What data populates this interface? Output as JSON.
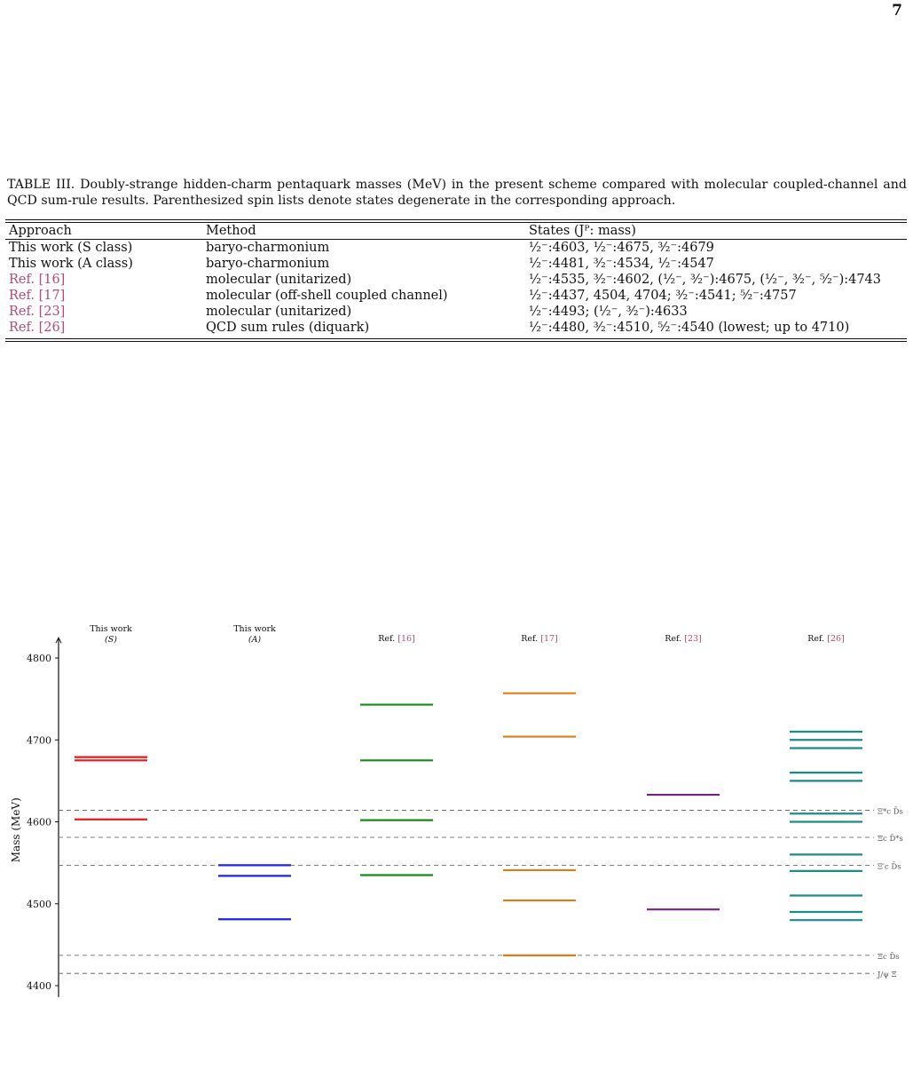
{
  "page_number": "7",
  "caption": "TABLE III. Doubly-strange hidden-charm pentaquark masses (MeV) in the present scheme compared with molecular coupled-channel and QCD sum-rule results. Parenthesized spin lists denote states degenerate in the corresponding approach.",
  "table": {
    "headers": [
      "Approach",
      "Method",
      "States (Jᴾ: mass)"
    ],
    "rows": [
      {
        "approach": "This work (S class)",
        "method": "baryo-charmonium",
        "states": "½⁻:4603, ½⁻:4675, ³⁄₂⁻:4679"
      },
      {
        "approach": "This work (A class)",
        "method": "baryo-charmonium",
        "states": "½⁻:4481, ³⁄₂⁻:4534, ½⁻:4547"
      },
      {
        "approach": "Ref. [16]",
        "method": "molecular (unitarized)",
        "states": "½⁻:4535, ³⁄₂⁻:4602, (½⁻, ³⁄₂⁻):4675, (½⁻, ³⁄₂⁻, ⁵⁄₂⁻):4743"
      },
      {
        "approach": "Ref. [17]",
        "method": "molecular (off-shell coupled channel)",
        "states": "½⁻:4437, 4504, 4704; ³⁄₂⁻:4541; ⁵⁄₂⁻:4757"
      },
      {
        "approach": "Ref. [23]",
        "method": "molecular (unitarized)",
        "states": "½⁻:4493; (½⁻, ³⁄₂⁻):4633"
      },
      {
        "approach": "Ref. [26]",
        "method": "QCD sum rules (diquark)",
        "states": "½⁻:4480, ³⁄₂⁻:4510, ⁵⁄₂⁻:4540 (lowest; up to 4710)"
      }
    ]
  },
  "chart_data": {
    "type": "level-diagram",
    "ylabel": "Mass (MeV)",
    "yticks": [
      4400,
      4500,
      4600,
      4700,
      4800
    ],
    "ylim": [
      4386,
      4815
    ],
    "columns": [
      {
        "label": "This work",
        "sublabel": "(S)",
        "color": "#e41a1c",
        "levels": [
          4603,
          4675,
          4679
        ]
      },
      {
        "label": "This work",
        "sublabel": "(A)",
        "color": "#1f22e8",
        "levels": [
          4481,
          4534,
          4547
        ]
      },
      {
        "label": "Ref. [16]",
        "sublabel": "",
        "color": "#178a17",
        "levels": [
          4535,
          4602,
          4675,
          4743
        ]
      },
      {
        "label": "Ref. [17]",
        "sublabel": "",
        "color": "#e07b1a",
        "levels": [
          4437,
          4504,
          4541,
          4704,
          4757
        ]
      },
      {
        "label": "Ref. [23]",
        "sublabel": "",
        "color": "#7b1f8a",
        "levels": [
          4493,
          4633
        ]
      },
      {
        "label": "Ref. [26]",
        "sublabel": "",
        "color": "#1f8a8a",
        "levels": [
          4480,
          4490,
          4510,
          4540,
          4560,
          4600,
          4610,
          4650,
          4660,
          4690,
          4700,
          4710
        ]
      }
    ],
    "thresholds": [
      {
        "label": "Ξ*c D̄s",
        "mass": 4614
      },
      {
        "label": "Ξc D̄*s",
        "mass": 4581
      },
      {
        "label": "Ξ′c D̄s",
        "mass": 4547
      },
      {
        "label": "Ξc D̄s",
        "mass": 4437
      },
      {
        "label": "J/ψ Ξ",
        "mass": 4415
      }
    ]
  }
}
